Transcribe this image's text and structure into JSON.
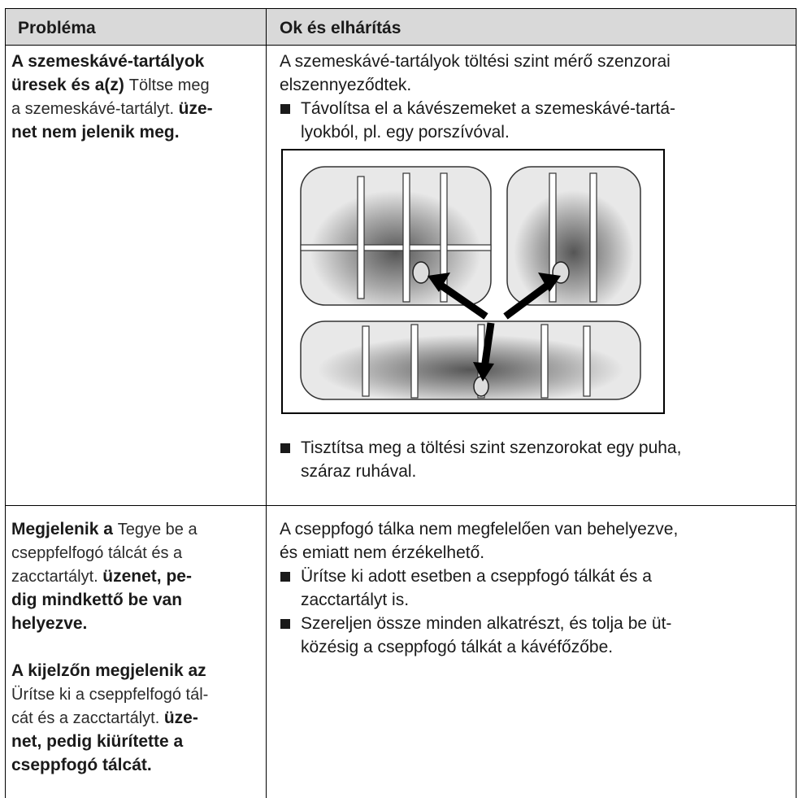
{
  "header": {
    "problem": "Probléma",
    "solution": "Ok és elhárítás"
  },
  "rows": [
    {
      "problem": [
        [
          [
            {
              "text": "A szemeskávé-tartályok",
              "bold": true
            }
          ],
          [
            {
              "text": "üresek és a(z) ",
              "bold": true
            },
            {
              "text": "Töltse meg",
              "bold": false
            }
          ],
          [
            {
              "text": "a szemeskávé-tartályt. ",
              "bold": false
            },
            {
              "text": "üze-",
              "bold": true
            }
          ],
          [
            {
              "text": "net nem jelenik meg.",
              "bold": true
            }
          ]
        ]
      ],
      "intro": [
        "A szemeskávé-tartályok töltési szint mérő szenzorai",
        "elszennyeződtek."
      ],
      "bullets": [
        [
          "Távolítsa el a kávészemeket a szemeskávé-tartá-",
          "lyokból, pl. egy porszívóval."
        ],
        [
          "Tisztítsa meg a töltési szint szenzorokat egy puha,",
          "száraz ruhával."
        ]
      ]
    },
    {
      "problem": [
        [
          [
            {
              "text": "Megjelenik a ",
              "bold": true
            },
            {
              "text": "Tegye be a",
              "bold": false
            }
          ],
          [
            {
              "text": "cseppfelfogó tálcát és a",
              "bold": false
            }
          ],
          [
            {
              "text": "zacctartályt. ",
              "bold": false
            },
            {
              "text": "üzenet, pe-",
              "bold": true
            }
          ],
          [
            {
              "text": "dig mindkettő be van",
              "bold": true
            }
          ],
          [
            {
              "text": "helyezve.",
              "bold": true
            }
          ]
        ],
        [
          [
            {
              "text": "A kijelzőn megjelenik az",
              "bold": true
            }
          ],
          [
            {
              "text": "Ürítse ki a cseppfelfogó tál-",
              "bold": false
            }
          ],
          [
            {
              "text": "cát és a zacctartályt. ",
              "bold": false
            },
            {
              "text": "üze-",
              "bold": true
            }
          ],
          [
            {
              "text": "net, pedig kiürítette a",
              "bold": true
            }
          ],
          [
            {
              "text": "cseppfogó tálcát.",
              "bold": true
            }
          ]
        ]
      ],
      "intro": [
        "A cseppfogó tálka nem megfelelően van behelyezve,",
        "és emiatt nem érzékelhető."
      ],
      "bullets": [
        [
          "Ürítse ki adott esetben a cseppfogó tálkát és a",
          "zacctartályt is."
        ],
        [
          "Szereljen össze minden alkatrészt, és tolja be üt-",
          "közésig a cseppfogó tálkát a kávéfőzőbe."
        ]
      ]
    }
  ]
}
